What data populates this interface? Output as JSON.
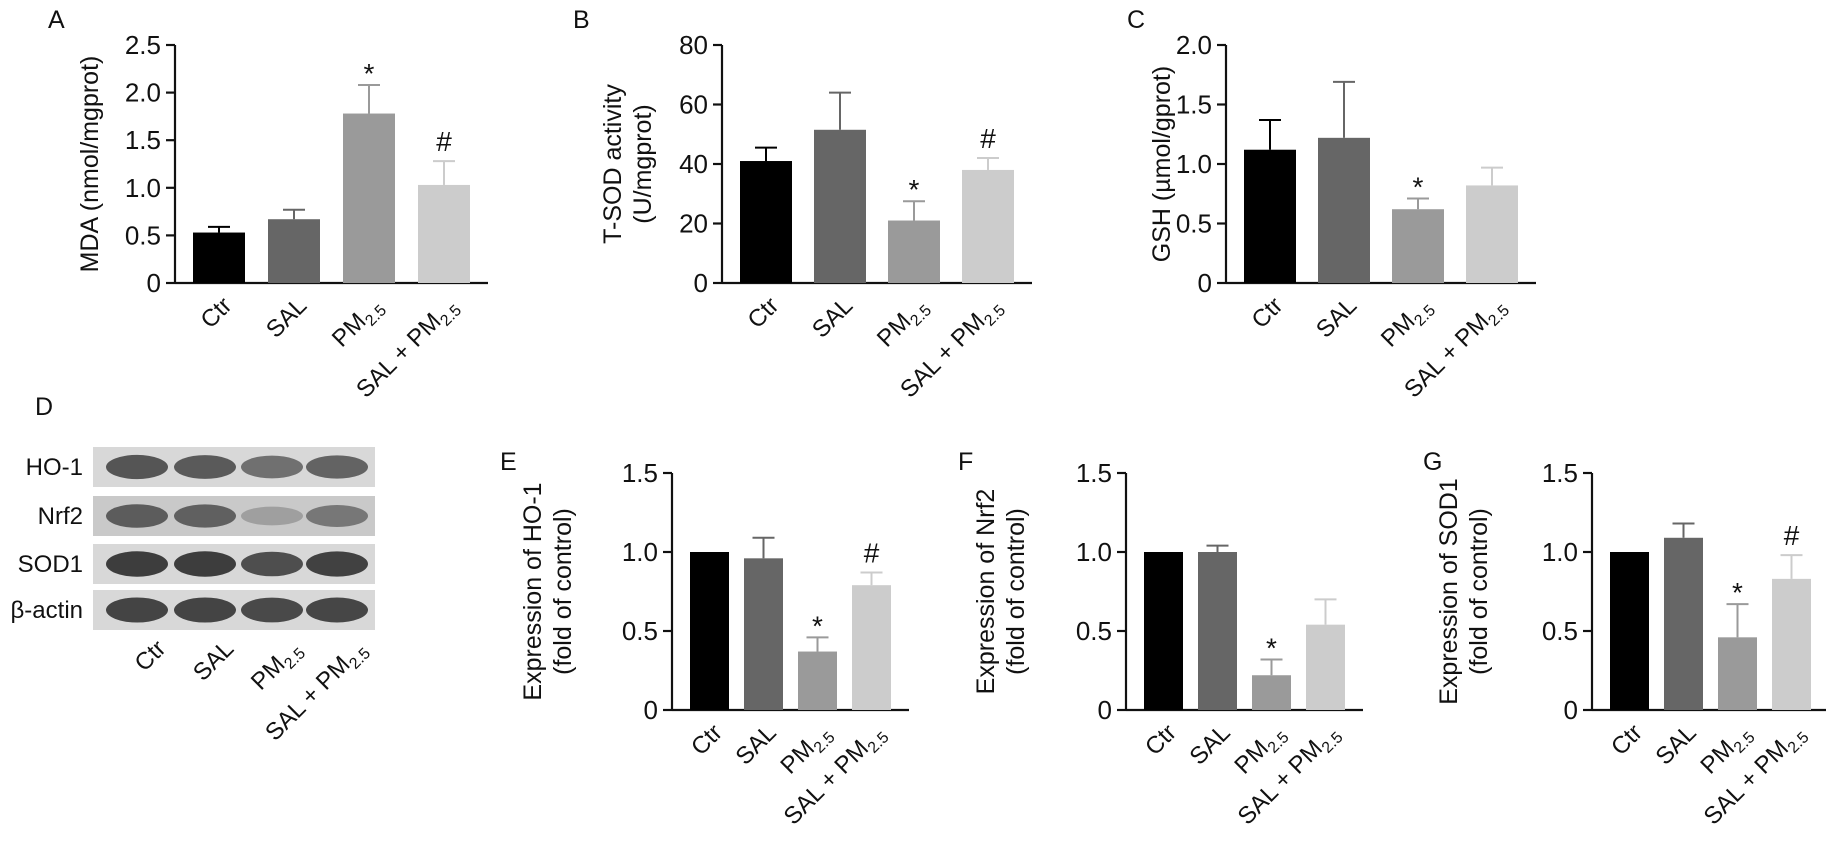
{
  "colors": {
    "Ctr": "#000000",
    "SAL": "#666666",
    "PM2.5": "#9a9a9a",
    "SAL + PM2.5": "#cccccc",
    "axis": "#111111"
  },
  "categories": [
    {
      "key": "Ctr",
      "main": "Ctr",
      "sub": "",
      "tail": ""
    },
    {
      "key": "SAL",
      "main": "SAL",
      "sub": "",
      "tail": ""
    },
    {
      "key": "PM2.5",
      "main": "PM",
      "sub": "2.5",
      "tail": ""
    },
    {
      "key": "SAL + PM2.5",
      "main": "SAL + PM",
      "sub": "2.5",
      "tail": ""
    }
  ],
  "chart_data": [
    {
      "panel": "A",
      "type": "bar",
      "ylabel_lines": [
        "MDA (nmol/mgprot)"
      ],
      "ylim": [
        0,
        2.5
      ],
      "yticks": [
        "0",
        "0.5",
        "1.0",
        "1.5",
        "2.0",
        "2.5"
      ],
      "values": [
        0.53,
        0.67,
        1.78,
        1.03
      ],
      "errors": [
        0.06,
        0.1,
        0.3,
        0.25
      ],
      "marks": [
        "",
        "",
        "*",
        "#"
      ]
    },
    {
      "panel": "B",
      "type": "bar",
      "ylabel_lines": [
        "T-SOD activity",
        "(U/mgprot)"
      ],
      "ylim": [
        0,
        80
      ],
      "yticks": [
        "0",
        "20",
        "40",
        "60",
        "80"
      ],
      "values": [
        41,
        51.5,
        21,
        38
      ],
      "errors": [
        4.5,
        12.5,
        6.5,
        4
      ],
      "marks": [
        "",
        "",
        "*",
        "#"
      ]
    },
    {
      "panel": "C",
      "type": "bar",
      "ylabel_lines": [
        "GSH (µmol/gprot)"
      ],
      "ylim": [
        0,
        2.0
      ],
      "yticks": [
        "0",
        "0.5",
        "1.0",
        "1.5",
        "2.0"
      ],
      "values": [
        1.12,
        1.22,
        0.62,
        0.82
      ],
      "errors": [
        0.25,
        0.47,
        0.09,
        0.15
      ],
      "marks": [
        "",
        "",
        "*",
        ""
      ]
    },
    {
      "panel": "E",
      "type": "bar",
      "ylabel_lines": [
        "Expression of HO-1",
        "(fold of control)"
      ],
      "ylim": [
        0,
        1.5
      ],
      "yticks": [
        "0",
        "0.5",
        "1.0",
        "1.5"
      ],
      "values": [
        1.0,
        0.96,
        0.37,
        0.79
      ],
      "errors": [
        0,
        0.13,
        0.09,
        0.08
      ],
      "marks": [
        "",
        "",
        "*",
        "#"
      ]
    },
    {
      "panel": "F",
      "type": "bar",
      "ylabel_lines": [
        "Expression of Nrf2",
        "(fold of control)"
      ],
      "ylim": [
        0,
        1.5
      ],
      "yticks": [
        "0",
        "0.5",
        "1.0",
        "1.5"
      ],
      "values": [
        1.0,
        1.0,
        0.22,
        0.54
      ],
      "errors": [
        0,
        0.04,
        0.1,
        0.16
      ],
      "marks": [
        "",
        "",
        "*",
        ""
      ]
    },
    {
      "panel": "G",
      "type": "bar",
      "ylabel_lines": [
        "Expression of SOD1",
        "(fold of control)"
      ],
      "ylim": [
        0,
        1.5
      ],
      "yticks": [
        "0",
        "0.5",
        "1.0",
        "1.5"
      ],
      "values": [
        1.0,
        1.09,
        0.46,
        0.83
      ],
      "errors": [
        0,
        0.09,
        0.21,
        0.15
      ],
      "marks": [
        "",
        "",
        "*",
        "#"
      ]
    }
  ],
  "blot": {
    "panel": "D",
    "rows": [
      "HO-1",
      "Nrf2",
      "SOD1",
      "β-actin"
    ],
    "band_intensity": [
      [
        0.85,
        0.82,
        0.72,
        0.78
      ],
      [
        0.8,
        0.78,
        0.4,
        0.66
      ],
      [
        0.95,
        0.95,
        0.88,
        0.93
      ],
      [
        0.92,
        0.92,
        0.9,
        0.91
      ]
    ]
  }
}
